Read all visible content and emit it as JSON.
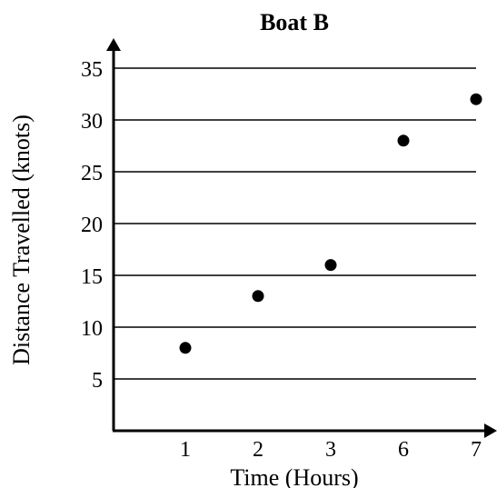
{
  "chart_data": {
    "type": "scatter",
    "title": "Boat B",
    "xlabel": "Time (Hours)",
    "ylabel": "Distance Travelled (knots)",
    "x_tick_labels": [
      "1",
      "2",
      "3",
      "6",
      "7"
    ],
    "y_ticks": [
      5,
      10,
      15,
      20,
      25,
      30,
      35
    ],
    "y_tick_labels": [
      "5",
      "10",
      "15",
      "20",
      "25",
      "30",
      "35"
    ],
    "ylim": [
      0,
      35
    ],
    "grid": "horizontal",
    "points": [
      {
        "x": "1",
        "y": 8
      },
      {
        "x": "2",
        "y": 13
      },
      {
        "x": "3",
        "y": 16
      },
      {
        "x": "6",
        "y": 28
      },
      {
        "x": "7",
        "y": 32
      }
    ],
    "marker_color": "#000000"
  }
}
